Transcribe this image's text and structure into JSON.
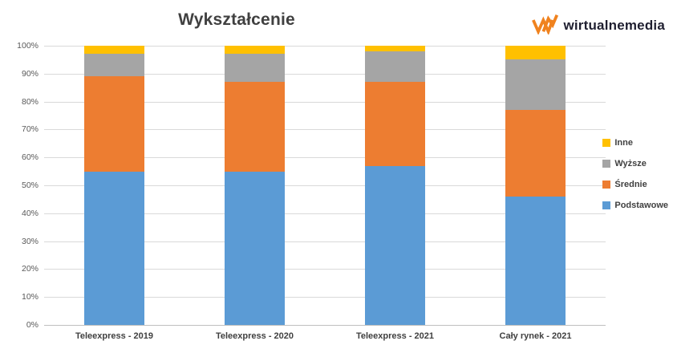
{
  "title": "Wykształcenie",
  "logo": {
    "text": "wirtualnemedia",
    "mark_color": "#f0821e"
  },
  "legend_items": [
    "Inne",
    "Wyższe",
    "Średnie",
    "Podstawowe"
  ],
  "chart_data": {
    "type": "bar",
    "stacked": true,
    "title": "Wykształcenie",
    "xlabel": "",
    "ylabel": "",
    "ylim": [
      0,
      100
    ],
    "yticks": [
      "0%",
      "10%",
      "20%",
      "30%",
      "40%",
      "50%",
      "60%",
      "70%",
      "80%",
      "90%",
      "100%"
    ],
    "grid": true,
    "legend_position": "right",
    "categories": [
      "Teleexpress - 2019",
      "Teleexpress - 2020",
      "Teleexpress - 2021",
      "Cały rynek - 2021"
    ],
    "series": [
      {
        "name": "Podstawowe",
        "color": "#5b9bd5",
        "values": [
          55,
          55,
          57,
          46
        ]
      },
      {
        "name": "Średnie",
        "color": "#ed7d31",
        "values": [
          34,
          32,
          30,
          31
        ]
      },
      {
        "name": "Wyższe",
        "color": "#a5a5a5",
        "values": [
          8,
          10,
          11,
          18
        ]
      },
      {
        "name": "Inne",
        "color": "#ffc000",
        "values": [
          3,
          3,
          2,
          5
        ]
      }
    ]
  }
}
